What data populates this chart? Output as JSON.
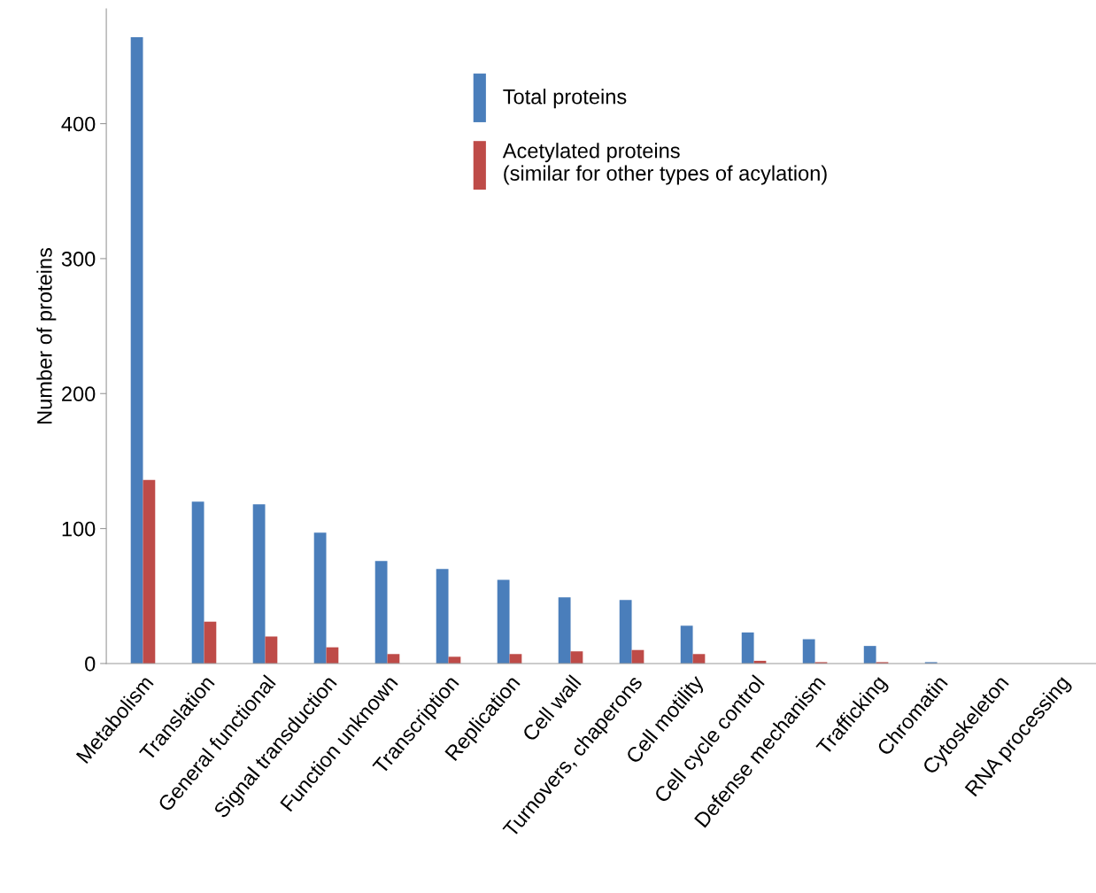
{
  "chart_data": {
    "type": "bar",
    "ylabel": "Number of proteins",
    "categories": [
      "Metabolism",
      "Translation",
      "General functional",
      "Signal transduction",
      "Function unknown",
      "Transcription",
      "Replication",
      "Cell wall",
      "Turnovers, chaperons",
      "Cell motility",
      "Cell cycle control",
      "Defense mechanism",
      "Trafficking",
      "Chromatin",
      "Cytoskeleton",
      "RNA processing"
    ],
    "series": [
      {
        "name": "Total proteins",
        "color": "#4a7ebb",
        "values": [
          464,
          120,
          118,
          97,
          76,
          70,
          62,
          49,
          47,
          28,
          23,
          18,
          13,
          1,
          0,
          0
        ]
      },
      {
        "name": "Acetylated proteins\n(similar for other types of acylation)",
        "color": "#be4b48",
        "values": [
          136,
          31,
          20,
          12,
          7,
          5,
          7,
          9,
          10,
          7,
          2,
          1,
          1,
          0,
          0,
          0
        ]
      }
    ],
    "ylim": [
      0,
      485
    ],
    "yticks": [
      0,
      100,
      200,
      300,
      400
    ],
    "grid": false,
    "legend": "top"
  }
}
